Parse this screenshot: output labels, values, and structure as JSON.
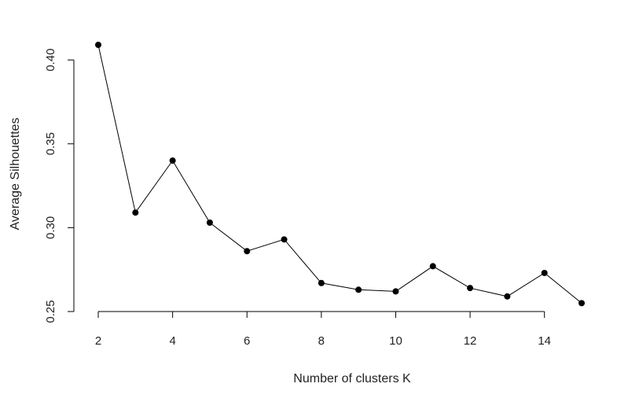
{
  "chart_data": {
    "type": "line",
    "title": "",
    "xlabel": "Number of clusters K",
    "ylabel": "Average Silhouettes",
    "x": [
      2,
      3,
      4,
      5,
      6,
      7,
      8,
      9,
      10,
      11,
      12,
      13,
      14,
      15
    ],
    "series": [
      {
        "values": [
          0.409,
          0.309,
          0.34,
          0.303,
          0.286,
          0.293,
          0.267,
          0.263,
          0.262,
          0.277,
          0.264,
          0.259,
          0.273,
          0.255
        ]
      }
    ],
    "xticks": [
      2,
      4,
      6,
      8,
      10,
      12,
      14
    ],
    "yticks": [
      0.25,
      0.3,
      0.35,
      0.4
    ],
    "xtick_labels": [
      "2",
      "4",
      "6",
      "8",
      "10",
      "12",
      "14"
    ],
    "ytick_labels": [
      "0.25",
      "0.30",
      "0.35",
      "0.40"
    ],
    "xlim": [
      2,
      15
    ],
    "ylim": [
      0.25,
      0.409
    ],
    "grid": false,
    "legend": "none",
    "marker": "filled-circle",
    "color": "#000000"
  }
}
